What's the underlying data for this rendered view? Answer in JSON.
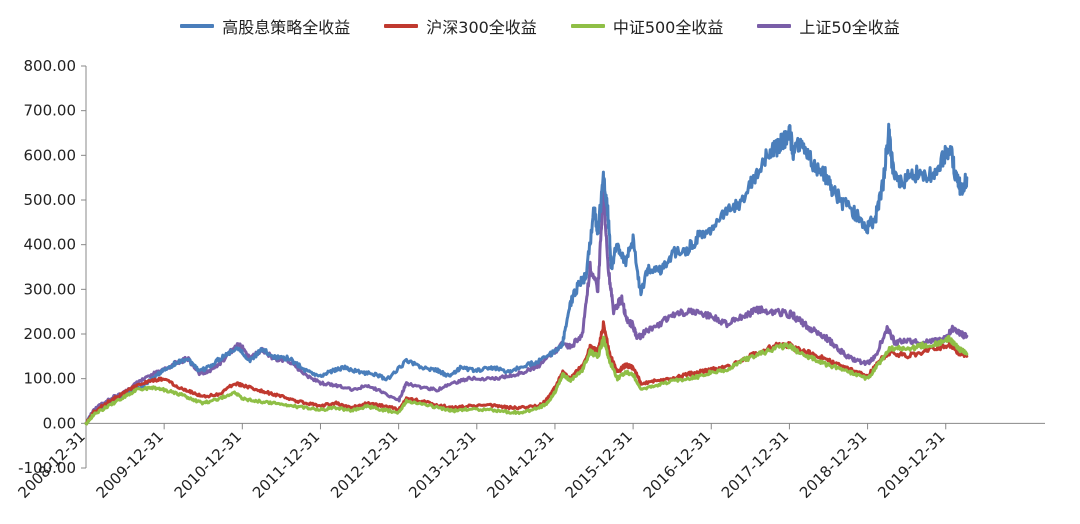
{
  "chart_data": {
    "type": "line",
    "title": "",
    "xlabel": "",
    "ylabel": "",
    "ylim": [
      -100,
      800
    ],
    "yticks": [
      "-100.00",
      "0.00",
      "100.00",
      "200.00",
      "300.00",
      "400.00",
      "500.00",
      "600.00",
      "700.00",
      "800.00"
    ],
    "ytick_values": [
      -100,
      0,
      100,
      200,
      300,
      400,
      500,
      600,
      700,
      800
    ],
    "xlim": [
      2008.0,
      2020.27
    ],
    "x_ticks": [
      {
        "label": "2008-12-31",
        "x": 2008.0
      },
      {
        "label": "2009-12-31",
        "x": 2009.0
      },
      {
        "label": "2010-12-31",
        "x": 2010.0
      },
      {
        "label": "2011-12-31",
        "x": 2011.0
      },
      {
        "label": "2012-12-31",
        "x": 2012.0
      },
      {
        "label": "2013-12-31",
        "x": 2013.0
      },
      {
        "label": "2014-12-31",
        "x": 2014.0
      },
      {
        "label": "2015-12-31",
        "x": 2015.0
      },
      {
        "label": "2016-12-31",
        "x": 2016.0
      },
      {
        "label": "2017-12-31",
        "x": 2017.0
      },
      {
        "label": "2018-12-31",
        "x": 2018.0
      },
      {
        "label": "2019-12-31",
        "x": 2019.0
      }
    ],
    "legend_position": "top",
    "series": [
      {
        "name": "高股息策略全收益",
        "color": "#4a7ebb",
        "points": [
          [
            2008.0,
            0
          ],
          [
            2008.1,
            25
          ],
          [
            2008.3,
            45
          ],
          [
            2008.5,
            65
          ],
          [
            2008.7,
            80
          ],
          [
            2008.85,
            100
          ],
          [
            2009.0,
            120
          ],
          [
            2009.15,
            135
          ],
          [
            2009.3,
            145
          ],
          [
            2009.45,
            115
          ],
          [
            2009.6,
            130
          ],
          [
            2009.75,
            150
          ],
          [
            2009.95,
            170
          ],
          [
            2010.1,
            140
          ],
          [
            2010.25,
            165
          ],
          [
            2010.4,
            150
          ],
          [
            2010.6,
            145
          ],
          [
            2010.8,
            120
          ],
          [
            2011.0,
            105
          ],
          [
            2011.15,
            118
          ],
          [
            2011.3,
            125
          ],
          [
            2011.5,
            115
          ],
          [
            2011.7,
            110
          ],
          [
            2011.85,
            98
          ],
          [
            2012.1,
            140
          ],
          [
            2012.3,
            125
          ],
          [
            2012.5,
            118
          ],
          [
            2012.65,
            105
          ],
          [
            2012.8,
            125
          ],
          [
            2013.0,
            118
          ],
          [
            2013.2,
            125
          ],
          [
            2013.4,
            115
          ],
          [
            2013.6,
            128
          ],
          [
            2013.8,
            140
          ],
          [
            2014.0,
            160
          ],
          [
            2014.1,
            180
          ],
          [
            2014.2,
            270
          ],
          [
            2014.3,
            310
          ],
          [
            2014.4,
            330
          ],
          [
            2014.5,
            480
          ],
          [
            2014.55,
            430
          ],
          [
            2014.62,
            550
          ],
          [
            2014.68,
            470
          ],
          [
            2014.72,
            350
          ],
          [
            2014.8,
            400
          ],
          [
            2014.9,
            360
          ],
          [
            2015.0,
            410
          ],
          [
            2015.1,
            290
          ],
          [
            2015.2,
            350
          ],
          [
            2015.35,
            340
          ],
          [
            2015.5,
            380
          ],
          [
            2015.7,
            390
          ],
          [
            2015.85,
            420
          ],
          [
            2016.0,
            440
          ],
          [
            2016.2,
            470
          ],
          [
            2016.4,
            500
          ],
          [
            2016.55,
            550
          ],
          [
            2016.7,
            600
          ],
          [
            2016.85,
            620
          ],
          [
            2016.95,
            640
          ],
          [
            2017.0,
            660
          ],
          [
            2017.05,
            600
          ],
          [
            2017.15,
            640
          ],
          [
            2017.3,
            580
          ],
          [
            2017.45,
            560
          ],
          [
            2017.55,
            520
          ],
          [
            2017.7,
            490
          ],
          [
            2017.85,
            470
          ],
          [
            2018.0,
            440
          ],
          [
            2018.1,
            460
          ],
          [
            2018.2,
            540
          ],
          [
            2018.27,
            650
          ],
          [
            2018.33,
            560
          ],
          [
            2018.45,
            540
          ],
          [
            2018.6,
            560
          ],
          [
            2018.8,
            555
          ],
          [
            2018.95,
            590
          ],
          [
            2019.05,
            620
          ],
          [
            2019.12,
            560
          ],
          [
            2019.2,
            520
          ],
          [
            2019.27,
            550
          ]
        ]
      },
      {
        "name": "沪深300全收益",
        "color": "#c0392f",
        "points": [
          [
            2008.0,
            0
          ],
          [
            2008.1,
            25
          ],
          [
            2008.3,
            50
          ],
          [
            2008.5,
            70
          ],
          [
            2008.65,
            85
          ],
          [
            2008.85,
            95
          ],
          [
            2009.0,
            100
          ],
          [
            2009.2,
            80
          ],
          [
            2009.35,
            70
          ],
          [
            2009.5,
            60
          ],
          [
            2009.7,
            65
          ],
          [
            2009.9,
            90
          ],
          [
            2010.0,
            85
          ],
          [
            2010.2,
            75
          ],
          [
            2010.4,
            65
          ],
          [
            2010.6,
            55
          ],
          [
            2010.8,
            45
          ],
          [
            2011.0,
            40
          ],
          [
            2011.2,
            45
          ],
          [
            2011.4,
            35
          ],
          [
            2011.6,
            45
          ],
          [
            2011.8,
            40
          ],
          [
            2012.0,
            30
          ],
          [
            2012.1,
            55
          ],
          [
            2012.3,
            50
          ],
          [
            2012.5,
            40
          ],
          [
            2012.7,
            35
          ],
          [
            2012.9,
            38
          ],
          [
            2013.2,
            40
          ],
          [
            2013.4,
            35
          ],
          [
            2013.6,
            35
          ],
          [
            2013.8,
            40
          ],
          [
            2013.9,
            55
          ],
          [
            2014.0,
            80
          ],
          [
            2014.1,
            115
          ],
          [
            2014.2,
            100
          ],
          [
            2014.35,
            130
          ],
          [
            2014.45,
            170
          ],
          [
            2014.55,
            160
          ],
          [
            2014.62,
            220
          ],
          [
            2014.7,
            155
          ],
          [
            2014.8,
            115
          ],
          [
            2014.9,
            130
          ],
          [
            2015.0,
            125
          ],
          [
            2015.1,
            90
          ],
          [
            2015.3,
            95
          ],
          [
            2015.5,
            100
          ],
          [
            2015.7,
            110
          ],
          [
            2015.85,
            115
          ],
          [
            2016.0,
            120
          ],
          [
            2016.2,
            125
          ],
          [
            2016.4,
            140
          ],
          [
            2016.6,
            160
          ],
          [
            2016.85,
            175
          ],
          [
            2017.0,
            175
          ],
          [
            2017.1,
            165
          ],
          [
            2017.3,
            155
          ],
          [
            2017.5,
            140
          ],
          [
            2017.7,
            125
          ],
          [
            2017.85,
            115
          ],
          [
            2018.0,
            105
          ],
          [
            2018.15,
            140
          ],
          [
            2018.3,
            160
          ],
          [
            2018.5,
            150
          ],
          [
            2018.7,
            160
          ],
          [
            2018.9,
            170
          ],
          [
            2019.05,
            175
          ],
          [
            2019.15,
            160
          ],
          [
            2019.27,
            150
          ]
        ]
      },
      {
        "name": "中证500全收益",
        "color": "#8fbf46",
        "points": [
          [
            2008.0,
            0
          ],
          [
            2008.1,
            20
          ],
          [
            2008.3,
            40
          ],
          [
            2008.5,
            60
          ],
          [
            2008.65,
            75
          ],
          [
            2008.85,
            80
          ],
          [
            2009.0,
            75
          ],
          [
            2009.2,
            65
          ],
          [
            2009.35,
            55
          ],
          [
            2009.5,
            45
          ],
          [
            2009.7,
            55
          ],
          [
            2009.9,
            70
          ],
          [
            2010.0,
            55
          ],
          [
            2010.2,
            50
          ],
          [
            2010.4,
            45
          ],
          [
            2010.6,
            40
          ],
          [
            2010.8,
            35
          ],
          [
            2011.0,
            30
          ],
          [
            2011.2,
            35
          ],
          [
            2011.4,
            28
          ],
          [
            2011.6,
            38
          ],
          [
            2011.8,
            30
          ],
          [
            2012.0,
            25
          ],
          [
            2012.1,
            50
          ],
          [
            2012.3,
            45
          ],
          [
            2012.5,
            35
          ],
          [
            2012.7,
            28
          ],
          [
            2012.9,
            32
          ],
          [
            2013.2,
            30
          ],
          [
            2013.4,
            25
          ],
          [
            2013.6,
            25
          ],
          [
            2013.8,
            35
          ],
          [
            2013.9,
            45
          ],
          [
            2014.0,
            70
          ],
          [
            2014.1,
            110
          ],
          [
            2014.2,
            95
          ],
          [
            2014.35,
            120
          ],
          [
            2014.45,
            160
          ],
          [
            2014.55,
            150
          ],
          [
            2014.62,
            190
          ],
          [
            2014.7,
            140
          ],
          [
            2014.8,
            100
          ],
          [
            2014.9,
            115
          ],
          [
            2015.0,
            110
          ],
          [
            2015.1,
            75
          ],
          [
            2015.3,
            85
          ],
          [
            2015.5,
            95
          ],
          [
            2015.7,
            100
          ],
          [
            2015.85,
            105
          ],
          [
            2016.0,
            115
          ],
          [
            2016.2,
            120
          ],
          [
            2016.4,
            140
          ],
          [
            2016.6,
            155
          ],
          [
            2016.85,
            170
          ],
          [
            2017.0,
            175
          ],
          [
            2017.1,
            160
          ],
          [
            2017.3,
            145
          ],
          [
            2017.5,
            130
          ],
          [
            2017.7,
            120
          ],
          [
            2017.85,
            110
          ],
          [
            2018.0,
            100
          ],
          [
            2018.15,
            135
          ],
          [
            2018.3,
            170
          ],
          [
            2018.5,
            165
          ],
          [
            2018.7,
            175
          ],
          [
            2018.9,
            180
          ],
          [
            2019.05,
            190
          ],
          [
            2019.15,
            170
          ],
          [
            2019.27,
            155
          ]
        ]
      },
      {
        "name": "上证50全收益",
        "color": "#7a5ea8",
        "points": [
          [
            2008.0,
            0
          ],
          [
            2008.1,
            30
          ],
          [
            2008.3,
            55
          ],
          [
            2008.5,
            70
          ],
          [
            2008.65,
            90
          ],
          [
            2008.85,
            110
          ],
          [
            2009.0,
            120
          ],
          [
            2009.15,
            135
          ],
          [
            2009.3,
            145
          ],
          [
            2009.45,
            110
          ],
          [
            2009.6,
            120
          ],
          [
            2009.75,
            140
          ],
          [
            2009.95,
            180
          ],
          [
            2010.1,
            145
          ],
          [
            2010.25,
            165
          ],
          [
            2010.4,
            145
          ],
          [
            2010.6,
            140
          ],
          [
            2010.8,
            110
          ],
          [
            2011.0,
            90
          ],
          [
            2011.2,
            85
          ],
          [
            2011.4,
            75
          ],
          [
            2011.6,
            85
          ],
          [
            2011.8,
            70
          ],
          [
            2012.0,
            50
          ],
          [
            2012.1,
            90
          ],
          [
            2012.3,
            80
          ],
          [
            2012.5,
            75
          ],
          [
            2012.7,
            90
          ],
          [
            2012.9,
            100
          ],
          [
            2013.2,
            100
          ],
          [
            2013.4,
            105
          ],
          [
            2013.6,
            115
          ],
          [
            2013.8,
            130
          ],
          [
            2014.0,
            160
          ],
          [
            2014.1,
            180
          ],
          [
            2014.2,
            170
          ],
          [
            2014.35,
            200
          ],
          [
            2014.45,
            350
          ],
          [
            2014.55,
            300
          ],
          [
            2014.62,
            520
          ],
          [
            2014.68,
            350
          ],
          [
            2014.75,
            250
          ],
          [
            2014.85,
            280
          ],
          [
            2014.92,
            230
          ],
          [
            2015.0,
            220
          ],
          [
            2015.05,
            190
          ],
          [
            2015.2,
            210
          ],
          [
            2015.4,
            230
          ],
          [
            2015.6,
            250
          ],
          [
            2015.8,
            250
          ],
          [
            2016.0,
            240
          ],
          [
            2016.2,
            220
          ],
          [
            2016.4,
            240
          ],
          [
            2016.6,
            255
          ],
          [
            2016.8,
            250
          ],
          [
            2017.0,
            245
          ],
          [
            2017.1,
            235
          ],
          [
            2017.25,
            215
          ],
          [
            2017.4,
            200
          ],
          [
            2017.55,
            180
          ],
          [
            2017.7,
            155
          ],
          [
            2017.85,
            140
          ],
          [
            2018.0,
            135
          ],
          [
            2018.1,
            150
          ],
          [
            2018.25,
            215
          ],
          [
            2018.35,
            180
          ],
          [
            2018.5,
            185
          ],
          [
            2018.7,
            180
          ],
          [
            2018.9,
            185
          ],
          [
            2019.0,
            190
          ],
          [
            2019.1,
            215
          ],
          [
            2019.2,
            200
          ],
          [
            2019.27,
            195
          ]
        ]
      }
    ]
  }
}
